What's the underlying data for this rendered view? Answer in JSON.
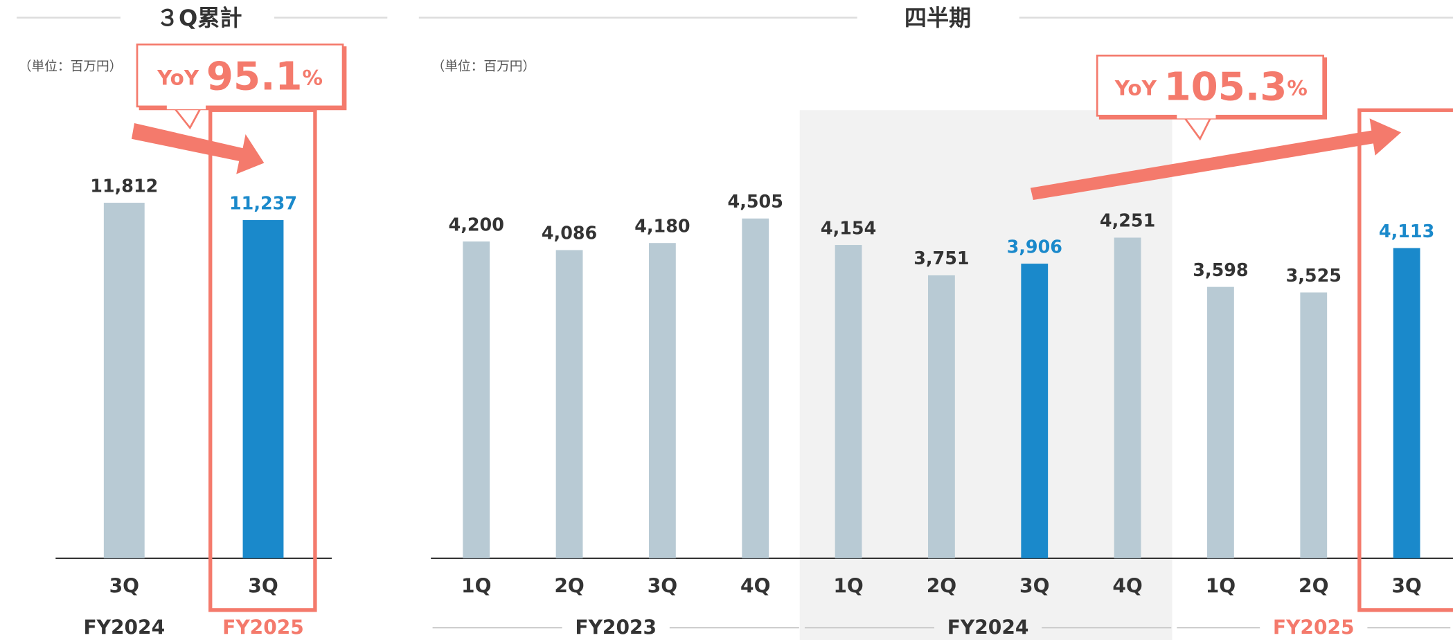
{
  "chart_data": [
    {
      "type": "bar",
      "title": "３Q累計",
      "unit_note": "（単位：百万円）",
      "annotation": {
        "prefix": "YoY",
        "value": 95.1,
        "unit": "%"
      },
      "color": "#b8cad4",
      "highlight_color": "#1a89cb",
      "groups": [
        {
          "name": "FY2024",
          "label_color": "#333333",
          "categories": [
            "3Q"
          ],
          "values": [
            11812
          ],
          "value_labels": [
            "11,812"
          ],
          "highlight": [
            false
          ]
        },
        {
          "name": "FY2025",
          "label_color": "#f47a6c",
          "categories": [
            "3Q"
          ],
          "values": [
            11237
          ],
          "value_labels": [
            "11,237"
          ],
          "highlight": [
            true
          ]
        }
      ]
    },
    {
      "type": "bar",
      "title": "四半期",
      "unit_note": "（単位：百万円）",
      "annotation": {
        "prefix": "YoY",
        "value": 105.3,
        "unit": "%"
      },
      "color": "#b8cad4",
      "highlight_color": "#1a89cb",
      "groups": [
        {
          "name": "FY2023",
          "label_color": "#333333",
          "categories": [
            "1Q",
            "2Q",
            "3Q",
            "4Q"
          ],
          "values": [
            4200,
            4086,
            4180,
            4505
          ],
          "value_labels": [
            "4,200",
            "4,086",
            "4,180",
            "4,505"
          ],
          "highlight": [
            false,
            false,
            false,
            false
          ]
        },
        {
          "name": "FY2024",
          "label_color": "#333333",
          "categories": [
            "1Q",
            "2Q",
            "3Q",
            "4Q"
          ],
          "values": [
            4154,
            3751,
            3906,
            4251
          ],
          "value_labels": [
            "4,154",
            "3,751",
            "3,906",
            "4,251"
          ],
          "highlight": [
            false,
            false,
            true,
            false
          ]
        },
        {
          "name": "FY2025",
          "label_color": "#f47a6c",
          "categories": [
            "1Q",
            "2Q",
            "3Q"
          ],
          "values": [
            3598,
            3525,
            4113
          ],
          "value_labels": [
            "3,598",
            "3,525",
            "4,113"
          ],
          "highlight": [
            false,
            false,
            true
          ]
        }
      ]
    }
  ]
}
